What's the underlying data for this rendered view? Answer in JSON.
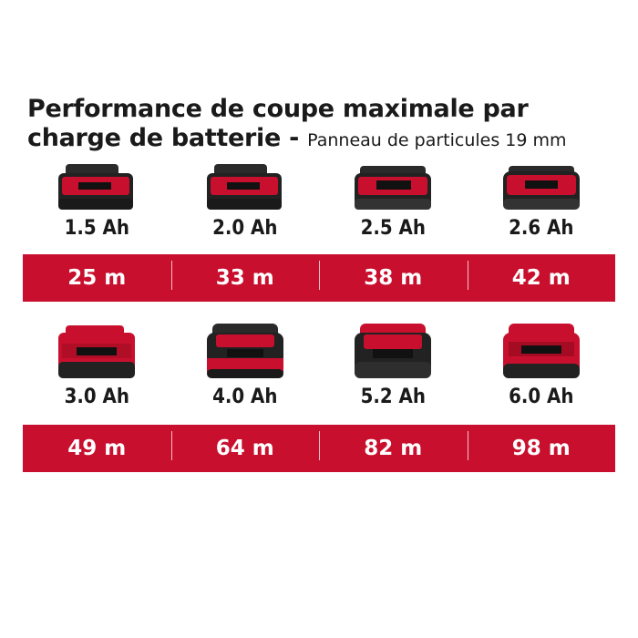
{
  "title": {
    "main": "Performance de coupe maximale par charge de batterie -",
    "sub": "Panneau de particules 19 mm"
  },
  "colors": {
    "accent": "#c8102e",
    "battery_body": "#2a2a2a"
  },
  "row1": {
    "batteries": [
      {
        "capacity": "1.5 Ah",
        "icon": "battery-icon"
      },
      {
        "capacity": "2.0 Ah",
        "icon": "battery-icon"
      },
      {
        "capacity": "2.5 Ah",
        "icon": "battery-icon"
      },
      {
        "capacity": "2.6 Ah",
        "icon": "battery-icon"
      }
    ],
    "values": [
      "25 m",
      "33 m",
      "38 m",
      "42 m"
    ]
  },
  "row2": {
    "batteries": [
      {
        "capacity": "3.0 Ah",
        "icon": "battery-icon"
      },
      {
        "capacity": "4.0 Ah",
        "icon": "battery-icon"
      },
      {
        "capacity": "5.2 Ah",
        "icon": "battery-icon"
      },
      {
        "capacity": "6.0 Ah",
        "icon": "battery-icon"
      }
    ],
    "values": [
      "49 m",
      "64 m",
      "82 m",
      "98 m"
    ]
  }
}
